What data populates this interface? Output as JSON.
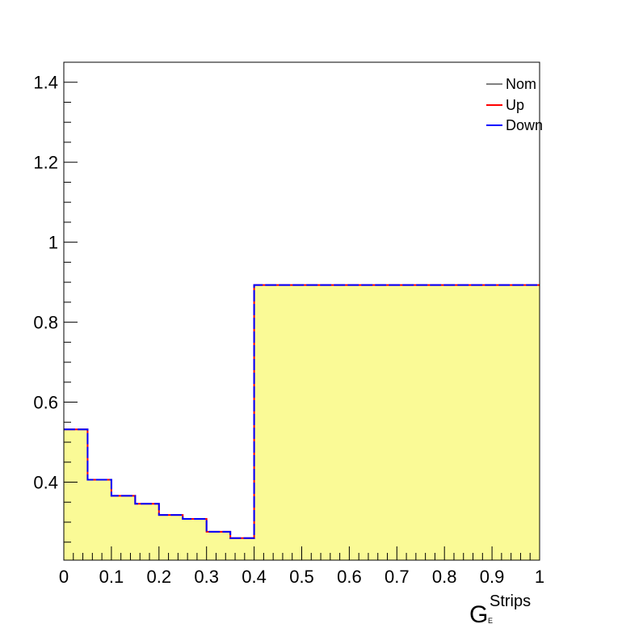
{
  "chart_data": {
    "type": "line",
    "style": "step-histogram",
    "title": "",
    "xlabel": {
      "main": "G",
      "superscript": "Strips",
      "subscript": "E"
    },
    "ylabel": "",
    "xlim": [
      0,
      1
    ],
    "ylim": [
      0.205,
      1.45
    ],
    "x_tick_labels": [
      "0",
      "0.1",
      "0.2",
      "0.3",
      "0.4",
      "0.5",
      "0.6",
      "0.7",
      "0.8",
      "0.9",
      "1"
    ],
    "y_tick_labels": [
      "0.4",
      "0.6",
      "0.8",
      "1",
      "1.2",
      "1.4"
    ],
    "bin_edges": [
      0,
      0.05,
      0.1,
      0.15,
      0.2,
      0.25,
      0.3,
      0.35,
      0.4,
      1.0
    ],
    "series": [
      {
        "name": "Nom",
        "color": "#000000",
        "fill": "#fafa96",
        "values": [
          0.532,
          0.406,
          0.366,
          0.346,
          0.318,
          0.308,
          0.276,
          0.26,
          0.893
        ]
      },
      {
        "name": "Up",
        "color": "#ff0000",
        "values": [
          0.532,
          0.406,
          0.366,
          0.346,
          0.318,
          0.308,
          0.276,
          0.26,
          0.893
        ]
      },
      {
        "name": "Down",
        "color": "#0000ff",
        "dashed": true,
        "values": [
          0.532,
          0.406,
          0.366,
          0.346,
          0.318,
          0.308,
          0.276,
          0.26,
          0.893
        ]
      }
    ],
    "legend_position": "top-right",
    "grid": false
  }
}
